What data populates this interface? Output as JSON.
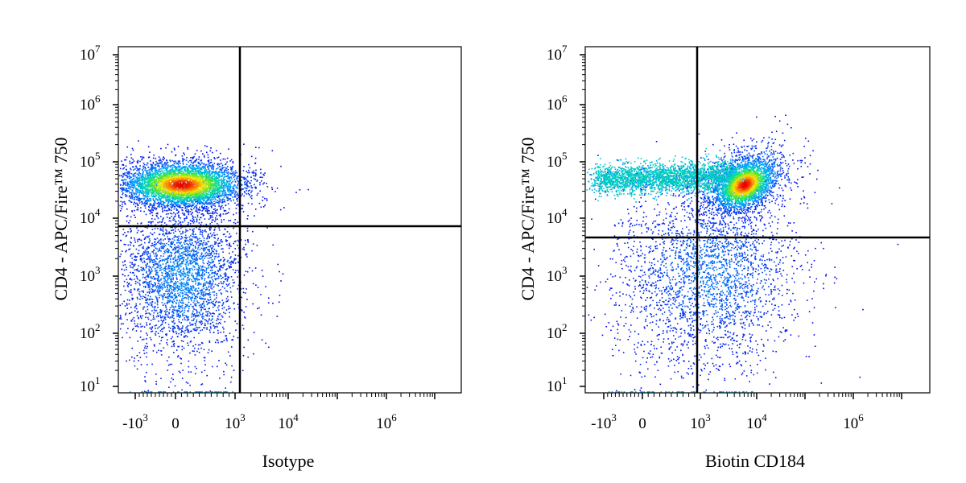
{
  "chart_data": [
    {
      "type": "scatter",
      "subtype": "flow-cytometry-density-dot-plot",
      "xlabel": "Isotype",
      "ylabel": "CD4 - APC/Fire™ 750",
      "x_scale": "biexponential",
      "y_scale": "log",
      "x_ticks": [
        "-10^3",
        "0",
        "10^3",
        "10^4",
        "10^6"
      ],
      "y_ticks": [
        "10^1",
        "10^2",
        "10^3",
        "10^4",
        "10^5",
        "10^6",
        "10^7"
      ],
      "ylim": [
        10,
        10000000
      ],
      "quadrant_gate": {
        "x": 1000,
        "y": 7000
      },
      "populations": [
        {
          "name": "CD4+ cluster",
          "x_center": 100,
          "y_center": 40000,
          "density": "high"
        },
        {
          "name": "CD4- cluster",
          "x_center": 100,
          "y_center": 1000,
          "density": "medium"
        }
      ]
    },
    {
      "type": "scatter",
      "subtype": "flow-cytometry-density-dot-plot",
      "xlabel": "Biotin CD184",
      "ylabel": "CD4 - APC/Fire™ 750",
      "x_scale": "biexponential",
      "y_scale": "log",
      "x_ticks": [
        "-10^3",
        "0",
        "10^3",
        "10^4",
        "10^6"
      ],
      "y_ticks": [
        "10^1",
        "10^2",
        "10^3",
        "10^4",
        "10^5",
        "10^6",
        "10^7"
      ],
      "ylim": [
        10,
        10000000
      ],
      "quadrant_gate": {
        "x": 1000,
        "y": 4500
      },
      "populations": [
        {
          "name": "CD4+ CD184+ cluster",
          "x_center": 6000,
          "y_center": 40000,
          "density": "high"
        },
        {
          "name": "CD4+ CD184- band",
          "x_center": 50,
          "y_center": 40000,
          "density": "medium"
        },
        {
          "name": "CD4- cluster",
          "x_center": 1500,
          "y_center": 1200,
          "density": "low"
        }
      ]
    }
  ]
}
